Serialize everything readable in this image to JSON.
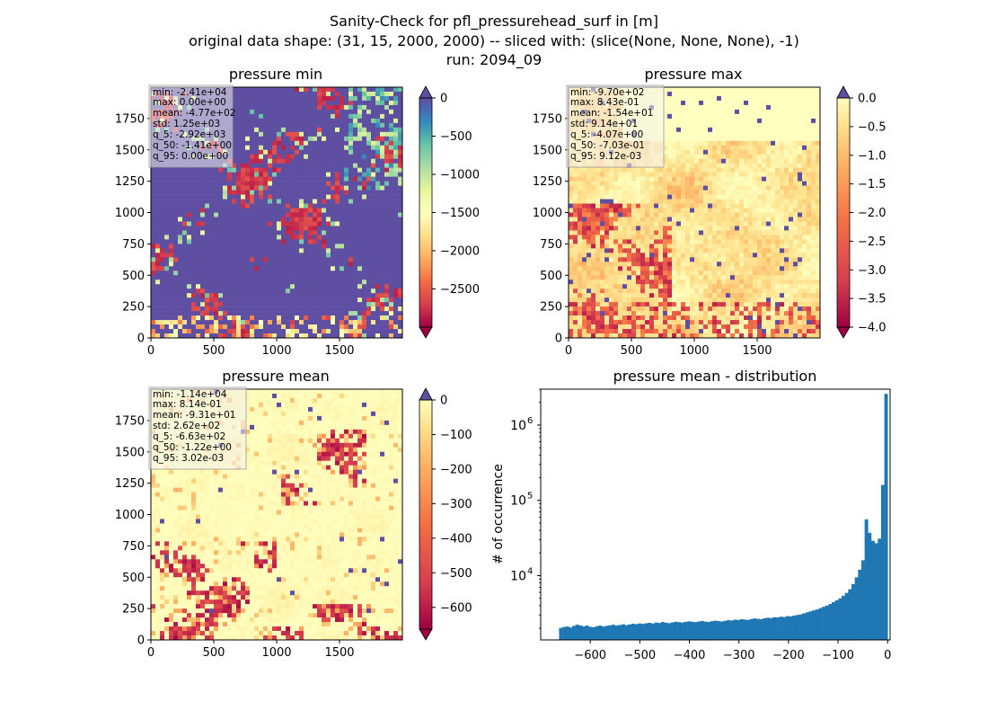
{
  "figure": {
    "suptitle_lines": [
      "Sanity-Check for pfl_pressurehead_surf in [m]",
      "original data shape: (31, 15, 2000, 2000) -- sliced with: (slice(None, None, None), -1)",
      "run: 2094_09"
    ]
  },
  "colors": {
    "spectral": [
      "#9e0142",
      "#d53e4f",
      "#f46d43",
      "#fdae61",
      "#fee08b",
      "#ffffbf",
      "#e6f598",
      "#abdda4",
      "#66c2a5",
      "#3288bd",
      "#5e4fa2"
    ],
    "hist_bar": "#1f77b4"
  },
  "chart_data": [
    {
      "type": "heatmap",
      "title": "pressure min",
      "xlim": [
        0,
        2000
      ],
      "ylim": [
        0,
        2000
      ],
      "xticks": [
        0,
        500,
        1000,
        1500
      ],
      "yticks": [
        0,
        250,
        500,
        750,
        1000,
        1250,
        1500,
        1750
      ],
      "colormap": "Spectral",
      "colorbar": {
        "vmin": -3000,
        "vmax": 0,
        "ticks": [
          0,
          -500,
          -1000,
          -1500,
          -2000,
          -2500
        ],
        "tick_labels": [
          "0",
          "−500",
          "−1000",
          "−1500",
          "−2000",
          "−2500"
        ],
        "extend": "both"
      },
      "stats_box": [
        "min: -2.41e+04",
        "max: 0.00e+00",
        "mean: -4.77e+02",
        "std: 1.25e+03",
        "q_5: -2.92e+03",
        "q_50: -1.41e+00",
        "q_95: 0.00e+00"
      ],
      "field_pattern": "dominant value near 0 (purple) with scattered dry patches near -3000 (red) across the domain"
    },
    {
      "type": "heatmap",
      "title": "pressure max",
      "xlim": [
        0,
        2000
      ],
      "ylim": [
        0,
        2000
      ],
      "xticks": [
        0,
        500,
        1000,
        1500
      ],
      "yticks": [
        0,
        250,
        500,
        750,
        1000,
        1250,
        1500,
        1750
      ],
      "colormap": "Spectral",
      "colorbar": {
        "vmin": -4.0,
        "vmax": 0.0,
        "ticks": [
          0.0,
          -0.5,
          -1.0,
          -1.5,
          -2.0,
          -2.5,
          -3.0,
          -3.5,
          -4.0
        ],
        "tick_labels": [
          "0.0",
          "−0.5",
          "−1.0",
          "−1.5",
          "−2.0",
          "−2.5",
          "−3.0",
          "−3.5",
          "−4.0"
        ],
        "extend": "both"
      },
      "stats_box": [
        "min: -9.70e+02",
        "max: 8.43e-01",
        "mean: -1.54e+01",
        "std: 9.14e+01",
        "q_5: -4.07e+00",
        "q_50: -7.03e-01",
        "q_95: 9.12e-03"
      ],
      "field_pattern": "mostly yellow/orange values between -1 and 0 with red regions near -4 in the lower-left and along the bottom"
    },
    {
      "type": "heatmap",
      "title": "pressure mean",
      "xlim": [
        0,
        2000
      ],
      "ylim": [
        0,
        2000
      ],
      "xticks": [
        0,
        500,
        1000,
        1500
      ],
      "yticks": [
        0,
        250,
        500,
        750,
        1000,
        1250,
        1500,
        1750
      ],
      "colormap": "Spectral",
      "colorbar": {
        "vmin": -663,
        "vmax": 0,
        "ticks": [
          0,
          -100,
          -200,
          -300,
          -400,
          -500,
          -600
        ],
        "tick_labels": [
          "0",
          "−100",
          "−200",
          "−300",
          "−400",
          "−500",
          "−600"
        ],
        "extend": "both"
      },
      "stats_box": [
        "min: -1.14e+04",
        "max: 8.14e-01",
        "mean: -9.31e+01",
        "std: 2.62e+02",
        "q_5: -6.63e+02",
        "q_50: -1.22e+00",
        "q_95: 3.02e-03"
      ],
      "field_pattern": "mostly pale yellow near 0 with red patches near -650 in the center-right upper area and the lower-left"
    },
    {
      "type": "bar",
      "title": "pressure mean - distribution",
      "xlabel": "",
      "ylabel": "# of occurrence",
      "yscale": "log",
      "xlim": [
        -700,
        5
      ],
      "ylim": [
        1400,
        3000000
      ],
      "xticks": [
        -600,
        -500,
        -400,
        -300,
        -200,
        -100,
        0
      ],
      "xtick_labels": [
        "−600",
        "−500",
        "−400",
        "−300",
        "−200",
        "−100",
        "0"
      ],
      "yticks": [
        10000,
        100000,
        1000000
      ],
      "ytick_labels": [
        "10",
        "10",
        "10"
      ],
      "ytick_exponents": [
        "4",
        "5",
        "6"
      ],
      "bin_range": [
        -663,
        0
      ],
      "bin_count": 100,
      "values": [
        2020,
        2080,
        2110,
        2050,
        2150,
        2230,
        2180,
        2120,
        2170,
        2090,
        2060,
        2130,
        2170,
        2110,
        2150,
        2190,
        2230,
        2170,
        2210,
        2260,
        2200,
        2250,
        2300,
        2270,
        2320,
        2280,
        2330,
        2360,
        2310,
        2380,
        2350,
        2420,
        2370,
        2340,
        2390,
        2440,
        2410,
        2380,
        2430,
        2470,
        2440,
        2410,
        2460,
        2500,
        2450,
        2420,
        2480,
        2520,
        2490,
        2460,
        2510,
        2560,
        2530,
        2600,
        2570,
        2640,
        2610,
        2580,
        2650,
        2700,
        2670,
        2640,
        2710,
        2760,
        2730,
        2800,
        2780,
        2850,
        2820,
        2900,
        2880,
        2950,
        3000,
        3050,
        3150,
        3250,
        3350,
        3450,
        3550,
        3700,
        3850,
        4000,
        4200,
        4450,
        4700,
        5000,
        5400,
        5900,
        6600,
        7700,
        9500,
        12000,
        16000,
        56000,
        37000,
        29000,
        27000,
        31000,
        160000,
        2600000
      ]
    }
  ]
}
